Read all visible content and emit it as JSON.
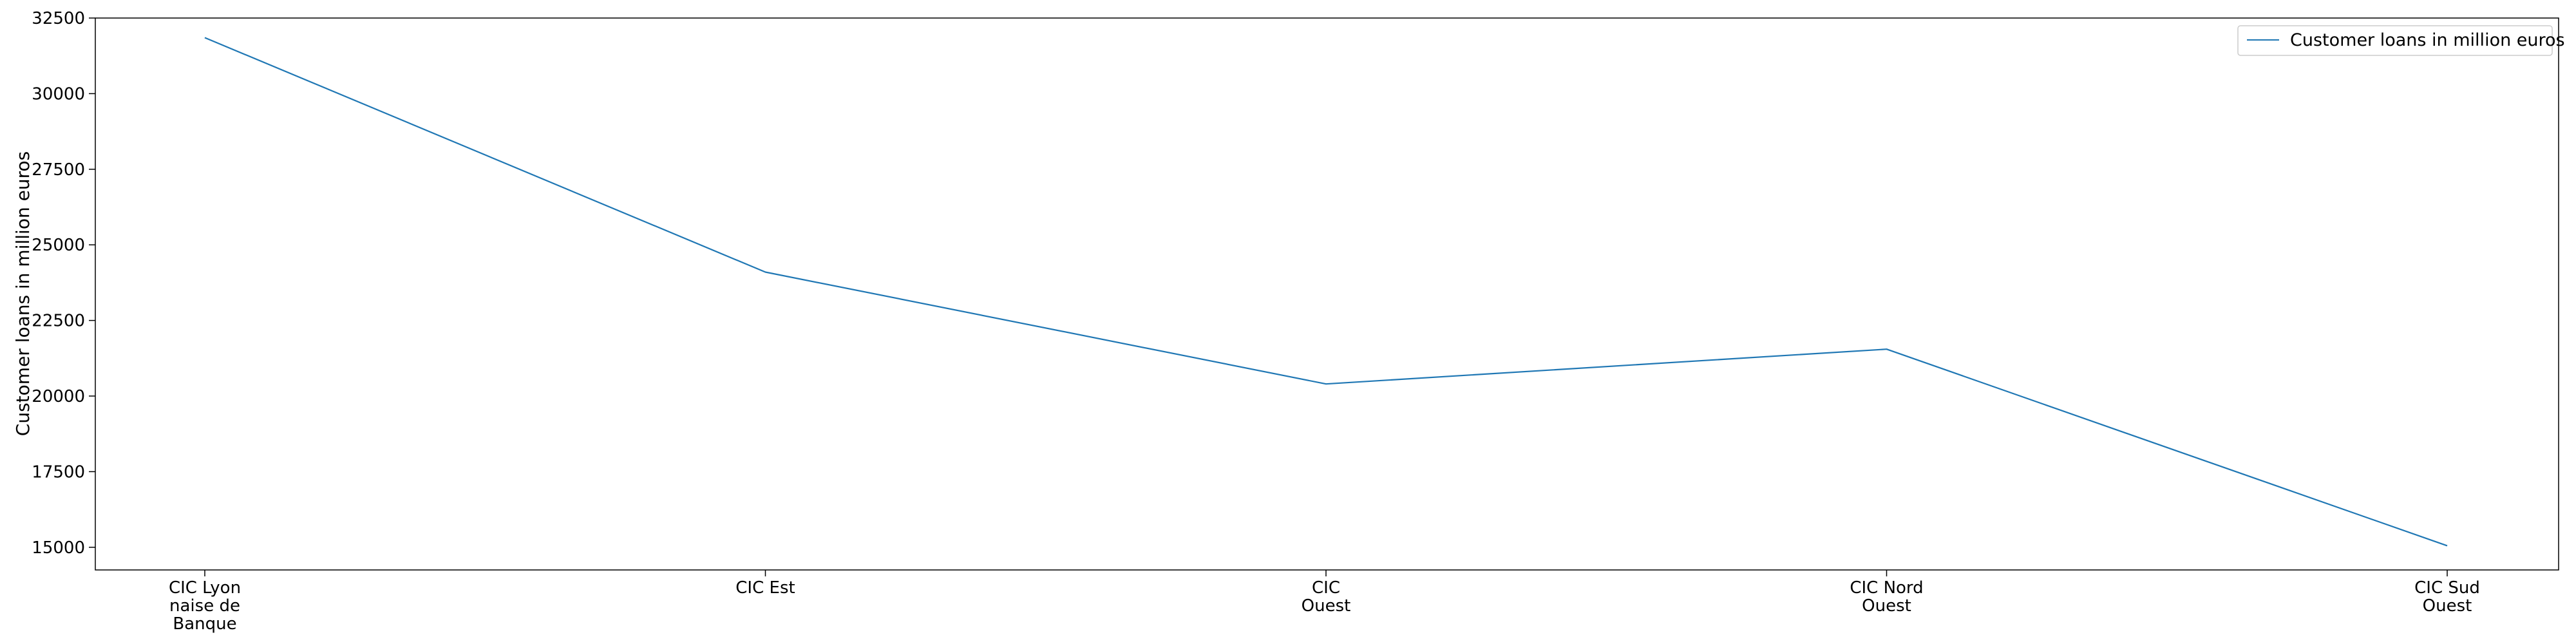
{
  "chart_data": {
    "type": "line",
    "categories": [
      "CIC Lyon\nnaise de\nBanque",
      "CIC Est",
      "CIC\nOuest",
      "CIC Nord\nOuest",
      "CIC Sud\nOuest"
    ],
    "series": [
      {
        "name": "Customer loans in million euros",
        "values": [
          31850,
          24100,
          20400,
          21550,
          15050
        ],
        "color": "#1f77b4"
      }
    ],
    "xlabel": "",
    "ylabel": "Customer loans in million euros",
    "ylim": [
      14250,
      32500
    ],
    "yticks": [
      15000,
      17500,
      20000,
      22500,
      25000,
      27500,
      30000,
      32500
    ],
    "grid": false,
    "legend_position": "top-right"
  }
}
